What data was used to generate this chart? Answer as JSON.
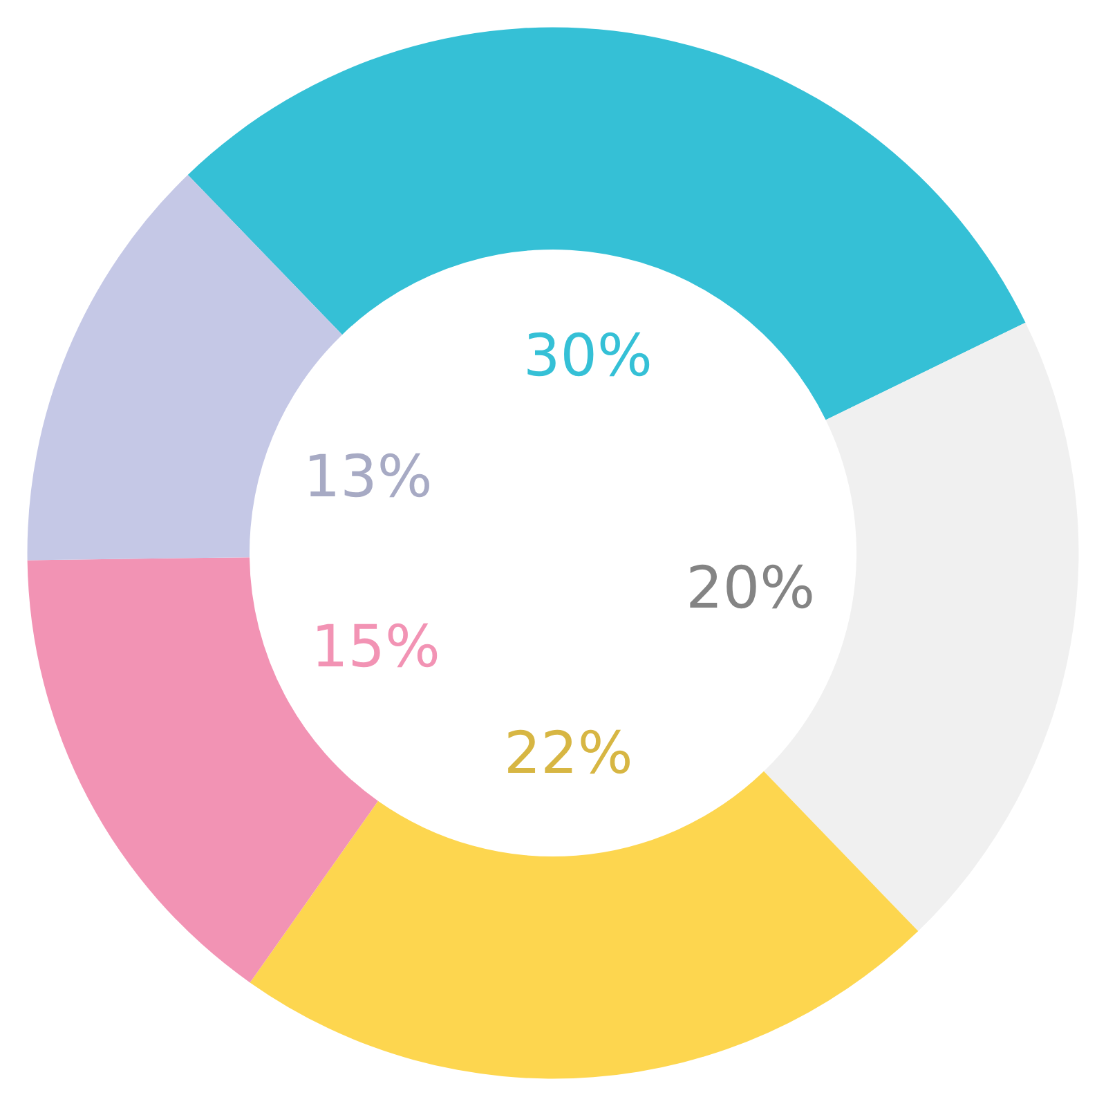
{
  "chart_data": {
    "type": "donut",
    "categories": [
      null,
      null,
      null,
      null,
      null
    ],
    "values": [
      30,
      20,
      22,
      15,
      13
    ],
    "colors": [
      "#35c0d6",
      "#f0f0f0",
      "#fdd64f",
      "#f293b4",
      "#c5c8e6"
    ],
    "value_labels": [
      "30%",
      "20%",
      "22%",
      "15%",
      "13%"
    ]
  }
}
